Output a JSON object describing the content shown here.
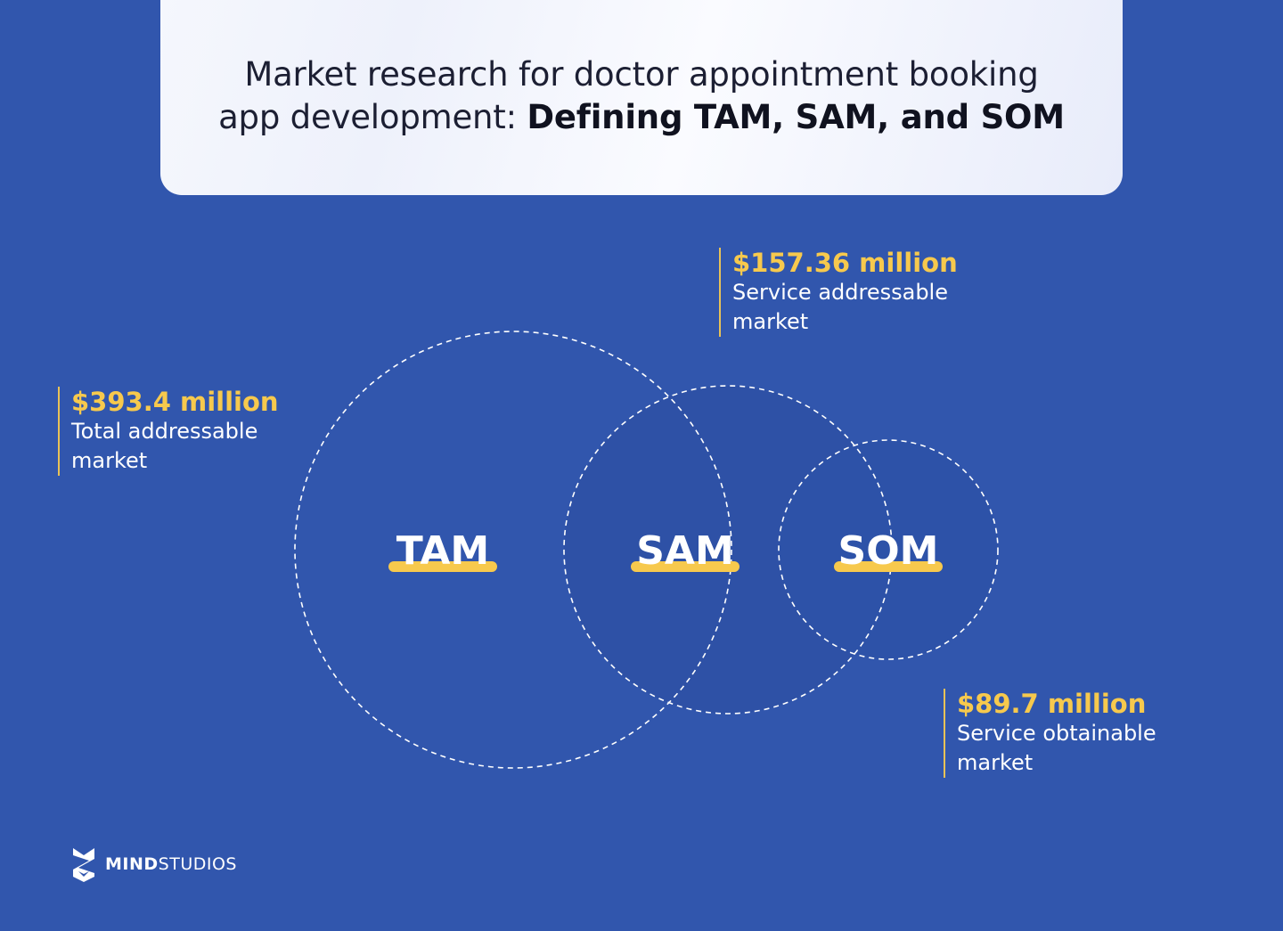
{
  "title": {
    "line1": "Market research for doctor appointment booking",
    "line2_regular": "app development: ",
    "line2_bold": "Defining TAM, SAM, and SOM"
  },
  "venn": {
    "tam_label": "TAM",
    "sam_label": "SAM",
    "som_label": "SOM"
  },
  "callouts": {
    "tam": {
      "value": "$393.4 million",
      "desc": "Total addressable market"
    },
    "sam": {
      "value": "$157.36 million",
      "desc": "Service addressable market"
    },
    "som": {
      "value": "$89.7 million",
      "desc": "Service obtainable market"
    }
  },
  "brand": {
    "bold": "MIND",
    "regular": "STUDIOS"
  },
  "colors": {
    "background": "#3156ad",
    "accent": "#f7c94d",
    "card": "#f5f7fd"
  }
}
